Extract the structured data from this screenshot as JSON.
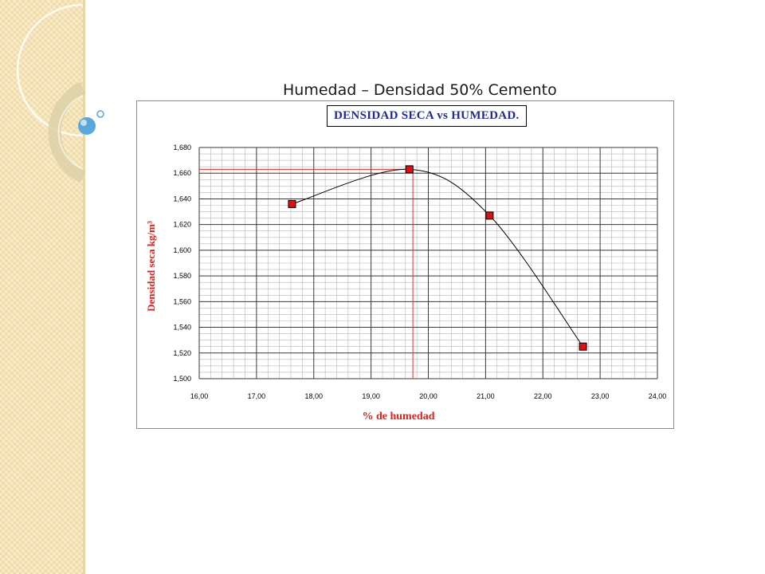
{
  "slide": {
    "title": "Humedad – Densidad 50% Cemento"
  },
  "colors": {
    "marker_fill": "#e01010",
    "curve": "#000000",
    "guide_line": "#e03030",
    "axis_label": "#e0201c",
    "chart_title": "#1e2a9c",
    "side_band": "#f5e3b3",
    "decor_circle": "#d9cfa8",
    "decor_bubble": "#5aa7dc"
  },
  "chart_data": {
    "type": "scatter",
    "title": "DENSIDAD SECA vs HUMEDAD.",
    "xlabel": "% de humedad",
    "ylabel": "Densidad seca kg/m³",
    "xlim": [
      16.0,
      24.0
    ],
    "ylim": [
      1.5,
      1.68
    ],
    "x_ticks": [
      "16,00",
      "17,00",
      "18,00",
      "19,00",
      "20,00",
      "21,00",
      "22,00",
      "23,00",
      "24,00"
    ],
    "y_ticks": [
      "1,500",
      "1,520",
      "1,540",
      "1,560",
      "1,580",
      "1,600",
      "1,620",
      "1,640",
      "1,660",
      "1,680"
    ],
    "grid": true,
    "series": [
      {
        "points": [
          {
            "x": 17.62,
            "y": 1.636
          },
          {
            "x": 19.67,
            "y": 1.663
          },
          {
            "x": 21.07,
            "y": 1.627
          },
          {
            "x": 22.7,
            "y": 1.525
          }
        ]
      }
    ],
    "optimum": {
      "x": 19.73,
      "y": 1.663
    }
  }
}
